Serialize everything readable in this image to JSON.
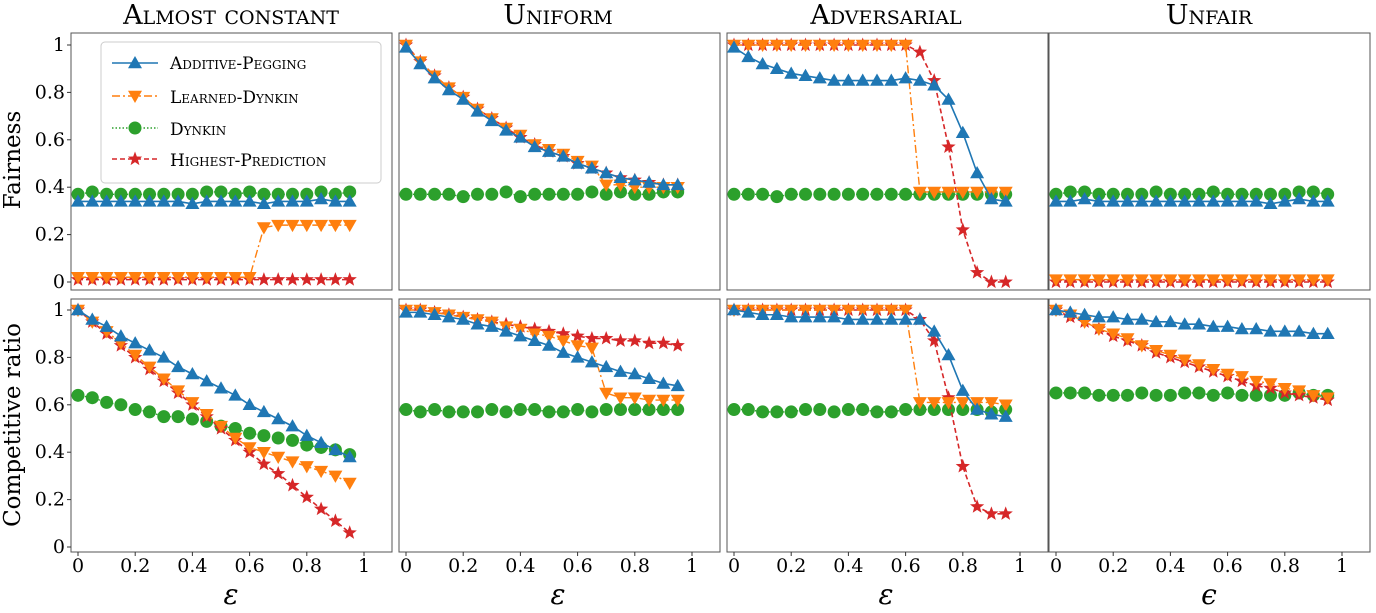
{
  "colors": {
    "additive_pegging": "#1f77b4",
    "learned_dynkin": "#ff7f0e",
    "dynkin": "#2ca02c",
    "highest_prediction": "#d62728"
  },
  "legend": {
    "additive_pegging": "Additive-Pegging",
    "learned_dynkin": "Learned-Dynkin",
    "dynkin": "Dynkin",
    "highest_prediction": "Highest-Prediction"
  },
  "chart_data": {
    "type": "line",
    "columns": [
      "Almost constant",
      "Uniform",
      "Adversarial",
      "Unfair"
    ],
    "row_labels": [
      "Fairness",
      "Competitive ratio"
    ],
    "x_labels": [
      "ε",
      "ε",
      "ε",
      "ϵ"
    ],
    "x": [
      0.0,
      0.05,
      0.1,
      0.15,
      0.2,
      0.25,
      0.3,
      0.35,
      0.4,
      0.45,
      0.5,
      0.55,
      0.6,
      0.65,
      0.7,
      0.75,
      0.8,
      0.85,
      0.9,
      0.95
    ],
    "xlim": [
      0,
      1
    ],
    "ylim": [
      0,
      1.05
    ],
    "x_ticks": [
      "0",
      "0.2",
      "0.4",
      "0.6",
      "0.8",
      "1"
    ],
    "y_ticks": [
      "0",
      "0.2",
      "0.4",
      "0.6",
      "0.8",
      "1"
    ],
    "panels": [
      {
        "row": 0,
        "col": 0,
        "series": [
          {
            "key": "additive_pegging",
            "values": [
              0.34,
              0.34,
              0.34,
              0.34,
              0.34,
              0.34,
              0.34,
              0.34,
              0.33,
              0.34,
              0.34,
              0.34,
              0.34,
              0.33,
              0.34,
              0.34,
              0.34,
              0.35,
              0.34,
              0.34
            ]
          },
          {
            "key": "learned_dynkin",
            "values": [
              0.02,
              0.02,
              0.02,
              0.02,
              0.02,
              0.02,
              0.02,
              0.02,
              0.02,
              0.02,
              0.02,
              0.02,
              0.02,
              0.23,
              0.24,
              0.24,
              0.24,
              0.24,
              0.24,
              0.24
            ]
          },
          {
            "key": "dynkin",
            "values": [
              0.37,
              0.38,
              0.37,
              0.37,
              0.37,
              0.37,
              0.37,
              0.37,
              0.37,
              0.38,
              0.38,
              0.37,
              0.38,
              0.37,
              0.37,
              0.37,
              0.37,
              0.38,
              0.37,
              0.38
            ]
          },
          {
            "key": "highest_prediction",
            "values": [
              0.01,
              0.01,
              0.01,
              0.01,
              0.01,
              0.01,
              0.01,
              0.01,
              0.01,
              0.01,
              0.01,
              0.01,
              0.01,
              0.01,
              0.01,
              0.01,
              0.01,
              0.01,
              0.01,
              0.01
            ]
          }
        ]
      },
      {
        "row": 0,
        "col": 1,
        "series": [
          {
            "key": "additive_pegging",
            "values": [
              0.99,
              0.92,
              0.86,
              0.81,
              0.77,
              0.72,
              0.68,
              0.64,
              0.61,
              0.57,
              0.55,
              0.53,
              0.5,
              0.48,
              0.46,
              0.44,
              0.43,
              0.42,
              0.41,
              0.41
            ]
          },
          {
            "key": "learned_dynkin",
            "values": [
              1.0,
              0.93,
              0.87,
              0.82,
              0.78,
              0.73,
              0.69,
              0.65,
              0.62,
              0.58,
              0.56,
              0.54,
              0.51,
              0.49,
              0.41,
              0.41,
              0.4,
              0.4,
              0.4,
              0.4
            ]
          },
          {
            "key": "dynkin",
            "values": [
              0.37,
              0.37,
              0.37,
              0.37,
              0.36,
              0.37,
              0.37,
              0.38,
              0.36,
              0.37,
              0.37,
              0.37,
              0.37,
              0.38,
              0.37,
              0.38,
              0.37,
              0.37,
              0.38,
              0.38
            ]
          },
          {
            "key": "highest_prediction",
            "values": [
              1.0,
              0.93,
              0.87,
              0.82,
              0.78,
              0.73,
              0.69,
              0.65,
              0.61,
              0.58,
              0.55,
              0.53,
              0.5,
              0.48,
              0.46,
              0.44,
              0.43,
              0.42,
              0.41,
              0.41
            ]
          }
        ]
      },
      {
        "row": 0,
        "col": 2,
        "series": [
          {
            "key": "additive_pegging",
            "values": [
              0.99,
              0.95,
              0.92,
              0.9,
              0.88,
              0.87,
              0.86,
              0.85,
              0.85,
              0.85,
              0.85,
              0.85,
              0.86,
              0.85,
              0.83,
              0.77,
              0.63,
              0.46,
              0.35,
              0.34
            ]
          },
          {
            "key": "learned_dynkin",
            "values": [
              1.0,
              1.0,
              1.0,
              1.0,
              1.0,
              1.0,
              1.0,
              1.0,
              1.0,
              1.0,
              1.0,
              1.0,
              1.0,
              0.38,
              0.38,
              0.38,
              0.38,
              0.38,
              0.38,
              0.38
            ]
          },
          {
            "key": "dynkin",
            "values": [
              0.37,
              0.37,
              0.37,
              0.36,
              0.37,
              0.37,
              0.37,
              0.37,
              0.37,
              0.37,
              0.37,
              0.37,
              0.37,
              0.37,
              0.37,
              0.37,
              0.37,
              0.37,
              0.37,
              0.37
            ]
          },
          {
            "key": "highest_prediction",
            "values": [
              1.0,
              1.0,
              1.0,
              1.0,
              1.0,
              1.0,
              1.0,
              1.0,
              1.0,
              1.0,
              1.0,
              1.0,
              1.0,
              0.97,
              0.85,
              0.57,
              0.22,
              0.04,
              0.0,
              0.0
            ]
          }
        ]
      },
      {
        "row": 0,
        "col": 3,
        "series": [
          {
            "key": "additive_pegging",
            "values": [
              0.34,
              0.34,
              0.35,
              0.34,
              0.34,
              0.34,
              0.34,
              0.34,
              0.34,
              0.34,
              0.34,
              0.34,
              0.34,
              0.34,
              0.34,
              0.33,
              0.34,
              0.35,
              0.34,
              0.34
            ]
          },
          {
            "key": "learned_dynkin",
            "values": [
              0.01,
              0.01,
              0.01,
              0.01,
              0.01,
              0.01,
              0.01,
              0.01,
              0.01,
              0.01,
              0.01,
              0.01,
              0.01,
              0.01,
              0.01,
              0.01,
              0.01,
              0.01,
              0.01,
              0.01
            ]
          },
          {
            "key": "dynkin",
            "values": [
              0.37,
              0.38,
              0.38,
              0.37,
              0.37,
              0.37,
              0.37,
              0.38,
              0.37,
              0.37,
              0.37,
              0.38,
              0.37,
              0.37,
              0.37,
              0.37,
              0.37,
              0.38,
              0.38,
              0.37
            ]
          },
          {
            "key": "highest_prediction",
            "values": [
              0.0,
              0.0,
              0.0,
              0.0,
              0.0,
              0.0,
              0.0,
              0.0,
              0.0,
              0.0,
              0.0,
              0.0,
              0.0,
              0.0,
              0.0,
              0.0,
              0.0,
              0.0,
              0.0,
              0.0
            ]
          }
        ]
      },
      {
        "row": 1,
        "col": 0,
        "series": [
          {
            "key": "additive_pegging",
            "values": [
              1.0,
              0.96,
              0.93,
              0.89,
              0.86,
              0.83,
              0.8,
              0.76,
              0.73,
              0.7,
              0.67,
              0.64,
              0.6,
              0.57,
              0.54,
              0.51,
              0.47,
              0.44,
              0.41,
              0.38
            ]
          },
          {
            "key": "learned_dynkin",
            "values": [
              1.0,
              0.95,
              0.91,
              0.86,
              0.81,
              0.76,
              0.71,
              0.66,
              0.61,
              0.56,
              0.51,
              0.46,
              0.42,
              0.4,
              0.38,
              0.36,
              0.34,
              0.32,
              0.3,
              0.27
            ]
          },
          {
            "key": "dynkin",
            "values": [
              0.64,
              0.63,
              0.61,
              0.6,
              0.58,
              0.57,
              0.55,
              0.55,
              0.54,
              0.53,
              0.51,
              0.5,
              0.48,
              0.47,
              0.46,
              0.45,
              0.43,
              0.42,
              0.41,
              0.39
            ]
          },
          {
            "key": "highest_prediction",
            "values": [
              1.0,
              0.95,
              0.9,
              0.85,
              0.8,
              0.75,
              0.7,
              0.65,
              0.6,
              0.55,
              0.5,
              0.45,
              0.4,
              0.35,
              0.31,
              0.26,
              0.21,
              0.16,
              0.11,
              0.06
            ]
          }
        ]
      },
      {
        "row": 1,
        "col": 1,
        "series": [
          {
            "key": "additive_pegging",
            "values": [
              0.99,
              0.99,
              0.98,
              0.97,
              0.96,
              0.94,
              0.93,
              0.91,
              0.89,
              0.87,
              0.85,
              0.82,
              0.8,
              0.78,
              0.76,
              0.74,
              0.73,
              0.71,
              0.69,
              0.68
            ]
          },
          {
            "key": "learned_dynkin",
            "values": [
              1.0,
              1.0,
              0.99,
              0.98,
              0.97,
              0.96,
              0.95,
              0.93,
              0.92,
              0.9,
              0.89,
              0.87,
              0.85,
              0.84,
              0.65,
              0.63,
              0.63,
              0.62,
              0.62,
              0.62
            ]
          },
          {
            "key": "dynkin",
            "values": [
              0.58,
              0.57,
              0.58,
              0.57,
              0.57,
              0.57,
              0.58,
              0.57,
              0.58,
              0.58,
              0.57,
              0.57,
              0.58,
              0.57,
              0.58,
              0.58,
              0.58,
              0.58,
              0.58,
              0.58
            ]
          },
          {
            "key": "highest_prediction",
            "values": [
              1.0,
              1.0,
              0.99,
              0.98,
              0.97,
              0.96,
              0.95,
              0.94,
              0.93,
              0.92,
              0.91,
              0.9,
              0.89,
              0.88,
              0.88,
              0.87,
              0.87,
              0.86,
              0.86,
              0.85
            ]
          }
        ]
      },
      {
        "row": 1,
        "col": 2,
        "series": [
          {
            "key": "additive_pegging",
            "values": [
              1.0,
              0.99,
              0.98,
              0.98,
              0.97,
              0.97,
              0.97,
              0.97,
              0.96,
              0.96,
              0.96,
              0.96,
              0.96,
              0.96,
              0.91,
              0.81,
              0.66,
              0.58,
              0.56,
              0.55
            ]
          },
          {
            "key": "learned_dynkin",
            "values": [
              1.0,
              1.0,
              1.0,
              1.0,
              1.0,
              1.0,
              1.0,
              1.0,
              1.0,
              1.0,
              1.0,
              1.0,
              1.0,
              0.61,
              0.61,
              0.61,
              0.61,
              0.61,
              0.61,
              0.6
            ]
          },
          {
            "key": "dynkin",
            "values": [
              0.58,
              0.58,
              0.57,
              0.57,
              0.57,
              0.58,
              0.58,
              0.57,
              0.58,
              0.58,
              0.57,
              0.57,
              0.58,
              0.58,
              0.58,
              0.58,
              0.58,
              0.58,
              0.57,
              0.58
            ]
          },
          {
            "key": "highest_prediction",
            "values": [
              1.0,
              1.0,
              1.0,
              1.0,
              1.0,
              1.0,
              1.0,
              1.0,
              1.0,
              1.0,
              1.0,
              1.0,
              1.0,
              0.96,
              0.87,
              0.63,
              0.34,
              0.17,
              0.14,
              0.14
            ]
          }
        ]
      },
      {
        "row": 1,
        "col": 3,
        "series": [
          {
            "key": "additive_pegging",
            "values": [
              1.0,
              0.99,
              0.98,
              0.97,
              0.97,
              0.96,
              0.96,
              0.95,
              0.95,
              0.94,
              0.94,
              0.93,
              0.93,
              0.92,
              0.92,
              0.91,
              0.91,
              0.91,
              0.9,
              0.9
            ]
          },
          {
            "key": "learned_dynkin",
            "values": [
              1.0,
              0.98,
              0.95,
              0.92,
              0.9,
              0.88,
              0.85,
              0.83,
              0.81,
              0.79,
              0.77,
              0.75,
              0.73,
              0.72,
              0.7,
              0.69,
              0.67,
              0.66,
              0.64,
              0.63
            ]
          },
          {
            "key": "dynkin",
            "values": [
              0.65,
              0.65,
              0.65,
              0.64,
              0.64,
              0.64,
              0.65,
              0.64,
              0.64,
              0.65,
              0.65,
              0.64,
              0.65,
              0.64,
              0.64,
              0.64,
              0.64,
              0.65,
              0.64,
              0.64
            ]
          },
          {
            "key": "highest_prediction",
            "values": [
              1.0,
              0.97,
              0.95,
              0.92,
              0.89,
              0.87,
              0.85,
              0.82,
              0.8,
              0.78,
              0.76,
              0.74,
              0.72,
              0.7,
              0.68,
              0.67,
              0.65,
              0.64,
              0.63,
              0.62
            ]
          }
        ]
      }
    ]
  }
}
